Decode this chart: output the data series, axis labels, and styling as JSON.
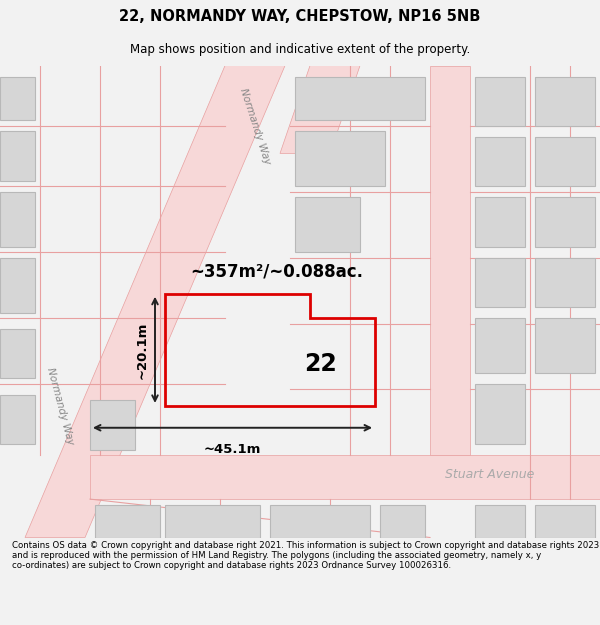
{
  "title_line1": "22, NORMANDY WAY, CHEPSTOW, NP16 5NB",
  "title_line2": "Map shows position and indicative extent of the property.",
  "footer_text": "Contains OS data © Crown copyright and database right 2021. This information is subject to Crown copyright and database rights 2023 and is reproduced with the permission of HM Land Registry. The polygons (including the associated geometry, namely x, y co-ordinates) are subject to Crown copyright and database rights 2023 Ordnance Survey 100026316.",
  "bg_color": "#f2f2f2",
  "map_bg": "#f0eeee",
  "road_fill": "#f7d8d8",
  "road_edge": "#e8a0a0",
  "building_fill": "#d6d6d6",
  "building_edge": "#b8b8b8",
  "prop_color": "#dd0000",
  "area_label": "~357m²/~0.088ac.",
  "number_label": "22",
  "dim_width": "~45.1m",
  "dim_height": "~20.1m",
  "street_normandy": "Normandy Way",
  "street_stuart": "Stuart Avenue"
}
